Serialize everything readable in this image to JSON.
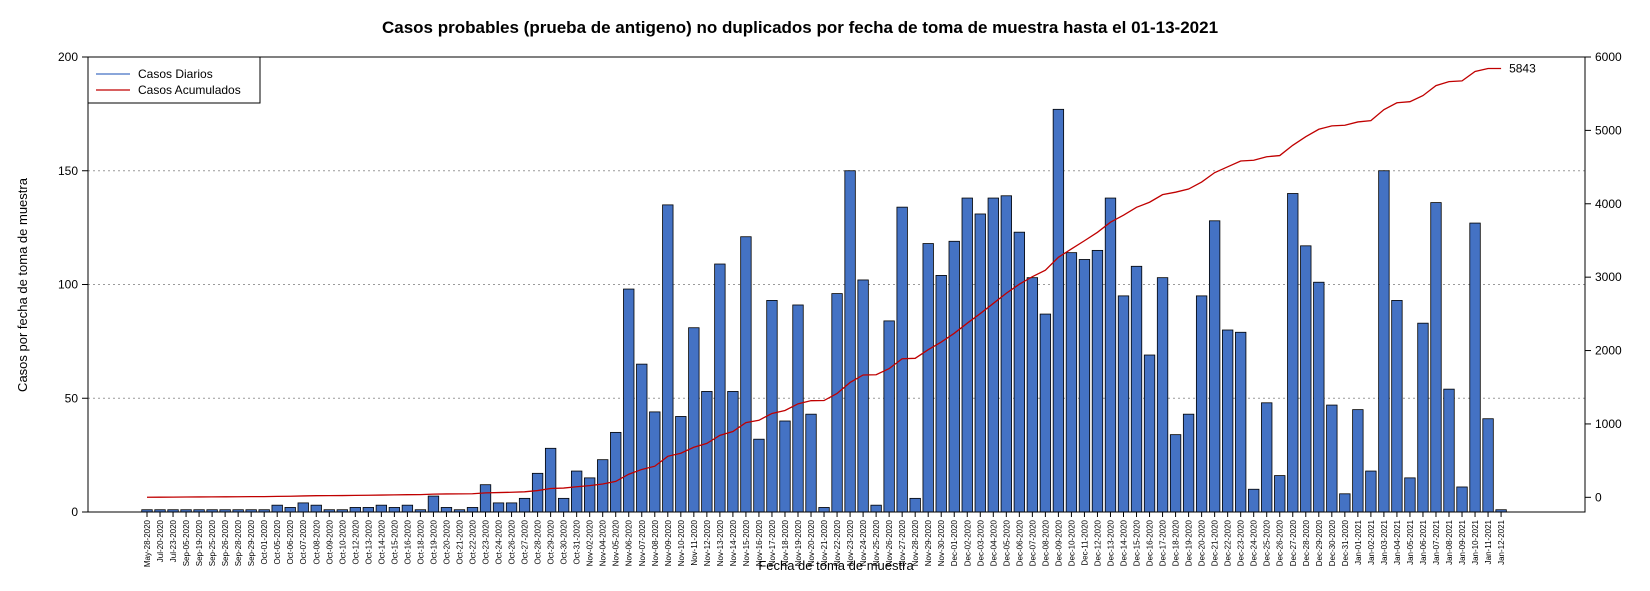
{
  "chart_data": {
    "type": "bar",
    "title": "Casos probables (prueba de antigeno) no duplicados por fecha de toma de muestra hasta el 01-13-2021",
    "xlabel": "Fecha de toma de muestra",
    "ylabel": "Casos por fecha de toma de muestra",
    "ylim": [
      0,
      200
    ],
    "y_ticks": [
      0,
      50,
      100,
      150,
      200
    ],
    "y2lim": [
      -200,
      6000
    ],
    "y2_ticks": [
      0,
      1000,
      2000,
      3000,
      4000,
      5000,
      6000
    ],
    "grid": "horizontal dotted",
    "legend_position": "top-left",
    "bar_color": "#4472C4",
    "line_color": "#C00000",
    "series": [
      {
        "name": "Casos Diarios",
        "type": "bar",
        "color": "#4472C4"
      },
      {
        "name": "Casos Acumulados",
        "type": "line",
        "axis": "right",
        "color": "#C00000"
      }
    ],
    "final_cumulative_label": "5843",
    "categories": [
      "May-28-2020",
      "Jul-20-2020",
      "Jul-23-2020",
      "Sep-05-2020",
      "Sep-19-2020",
      "Sep-25-2020",
      "Sep-26-2020",
      "Sep-28-2020",
      "Sep-29-2020",
      "Oct-01-2020",
      "Oct-05-2020",
      "Oct-06-2020",
      "Oct-07-2020",
      "Oct-08-2020",
      "Oct-09-2020",
      "Oct-10-2020",
      "Oct-12-2020",
      "Oct-13-2020",
      "Oct-14-2020",
      "Oct-15-2020",
      "Oct-16-2020",
      "Oct-18-2020",
      "Oct-19-2020",
      "Oct-20-2020",
      "Oct-21-2020",
      "Oct-22-2020",
      "Oct-23-2020",
      "Oct-24-2020",
      "Oct-26-2020",
      "Oct-27-2020",
      "Oct-28-2020",
      "Oct-29-2020",
      "Oct-30-2020",
      "Oct-31-2020",
      "Nov-02-2020",
      "Nov-04-2020",
      "Nov-05-2020",
      "Nov-06-2020",
      "Nov-07-2020",
      "Nov-08-2020",
      "Nov-09-2020",
      "Nov-10-2020",
      "Nov-11-2020",
      "Nov-12-2020",
      "Nov-13-2020",
      "Nov-14-2020",
      "Nov-15-2020",
      "Nov-16-2020",
      "Nov-17-2020",
      "Nov-18-2020",
      "Nov-19-2020",
      "Nov-20-2020",
      "Nov-21-2020",
      "Nov-22-2020",
      "Nov-23-2020",
      "Nov-24-2020",
      "Nov-25-2020",
      "Nov-26-2020",
      "Nov-27-2020",
      "Nov-28-2020",
      "Nov-29-2020",
      "Nov-30-2020",
      "Dec-01-2020",
      "Dec-02-2020",
      "Dec-03-2020",
      "Dec-04-2020",
      "Dec-05-2020",
      "Dec-06-2020",
      "Dec-07-2020",
      "Dec-08-2020",
      "Dec-09-2020",
      "Dec-10-2020",
      "Dec-11-2020",
      "Dec-12-2020",
      "Dec-13-2020",
      "Dec-14-2020",
      "Dec-15-2020",
      "Dec-16-2020",
      "Dec-17-2020",
      "Dec-18-2020",
      "Dec-19-2020",
      "Dec-20-2020",
      "Dec-21-2020",
      "Dec-22-2020",
      "Dec-23-2020",
      "Dec-24-2020",
      "Dec-25-2020",
      "Dec-26-2020",
      "Dec-27-2020",
      "Dec-28-2020",
      "Dec-29-2020",
      "Dec-30-2020",
      "Dec-31-2020",
      "Jan-01-2021",
      "Jan-02-2021",
      "Jan-03-2021",
      "Jan-04-2021",
      "Jan-05-2021",
      "Jan-06-2021",
      "Jan-07-2021",
      "Jan-08-2021",
      "Jan-09-2021",
      "Jan-10-2021",
      "Jan-11-2021",
      "Jan-12-2021"
    ],
    "daily": [
      1,
      1,
      1,
      1,
      1,
      1,
      1,
      1,
      1,
      1,
      3,
      2,
      4,
      3,
      1,
      1,
      2,
      2,
      3,
      2,
      3,
      1,
      7,
      2,
      1,
      2,
      12,
      4,
      4,
      6,
      17,
      28,
      6,
      18,
      15,
      23,
      35,
      98,
      65,
      44,
      135,
      42,
      81,
      53,
      109,
      53,
      121,
      32,
      93,
      40,
      91,
      43,
      2,
      96,
      150,
      102,
      3,
      84,
      134,
      6,
      118,
      104,
      119,
      138,
      131,
      138,
      139,
      123,
      103,
      87,
      177,
      114,
      111,
      115,
      138,
      95,
      108,
      69,
      103,
      34,
      43,
      95,
      128,
      80,
      79,
      10,
      48,
      16,
      140,
      117,
      101,
      47,
      8,
      45,
      18,
      150,
      93,
      15,
      83,
      136,
      54,
      11,
      127,
      41,
      1
    ],
    "cumulative": [
      1,
      2,
      3,
      4,
      5,
      6,
      7,
      8,
      9,
      10,
      13,
      15,
      19,
      22,
      23,
      24,
      26,
      28,
      31,
      33,
      36,
      37,
      44,
      46,
      47,
      49,
      61,
      65,
      69,
      75,
      92,
      120,
      126,
      144,
      159,
      182,
      217,
      315,
      380,
      424,
      559,
      601,
      682,
      735,
      844,
      897,
      1018,
      1050,
      1143,
      1183,
      1274,
      1317,
      1319,
      1415,
      1565,
      1667,
      1670,
      1754,
      1888,
      1894,
      2012,
      2116,
      2235,
      2373,
      2504,
      2642,
      2781,
      2904,
      3007,
      3094,
      3271,
      3385,
      3496,
      3611,
      3749,
      3844,
      3952,
      4021,
      4124,
      4158,
      4201,
      4296,
      4424,
      4504,
      4583,
      4593,
      4641,
      4657,
      4797,
      4914,
      5015,
      5062,
      5070,
      5115,
      5133,
      5283,
      5376,
      5391,
      5474,
      5610,
      5664,
      5675,
      5802,
      5843,
      5843
    ]
  },
  "legend": {
    "daily_label": "Casos Diarios",
    "cumulative_label": "Casos Acumulados"
  }
}
